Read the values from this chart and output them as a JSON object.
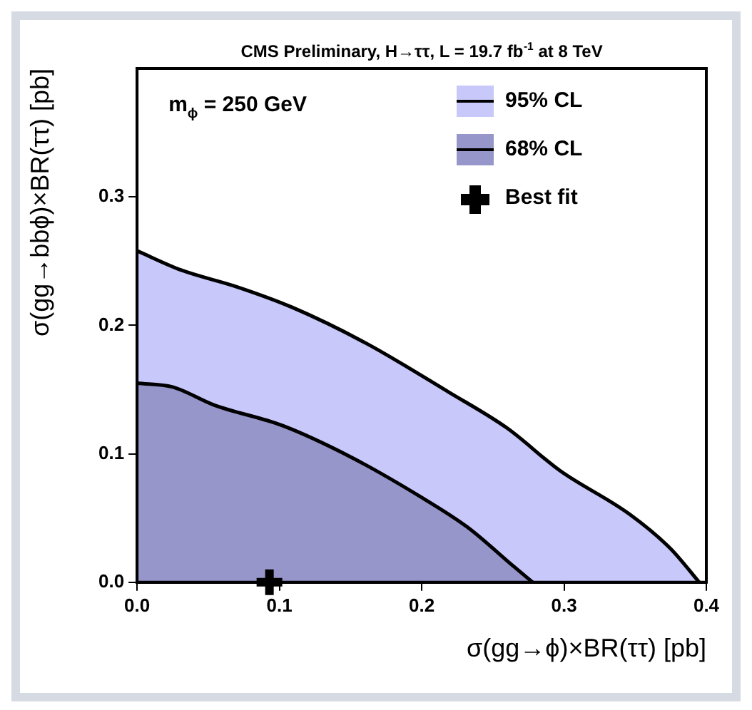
{
  "chart_data": {
    "type": "area",
    "title": "CMS Preliminary, H→ττ, L = 19.7 fb$^{-1}$ at 8 TeV",
    "xlabel": "σ(gg→ϕ)×BR(ττ) [pb]",
    "ylabel": "σ(gg→bbϕ)×BR(ττ) [pb]",
    "annotations": [
      "m$_{ϕ}$ = 250 GeV"
    ],
    "series": [
      {
        "name": "95% CL",
        "type": "area",
        "color": "#c8c8fa",
        "x": [
          0,
          0.031,
          0.07,
          0.109,
          0.161,
          0.219,
          0.26,
          0.297,
          0.346,
          0.375,
          0.395
        ],
        "values": [
          0.258,
          0.243,
          0.23,
          0.214,
          0.186,
          0.148,
          0.12,
          0.087,
          0.053,
          0.026,
          0
        ]
      },
      {
        "name": "68% CL",
        "type": "area",
        "color": "#9696cb",
        "x": [
          0,
          0.025,
          0.054,
          0.102,
          0.151,
          0.2,
          0.232,
          0.265,
          0.278
        ],
        "values": [
          0.155,
          0.152,
          0.138,
          0.122,
          0.097,
          0.066,
          0.043,
          0.012,
          0
        ]
      },
      {
        "name": "Best fit",
        "type": "scatter",
        "color": "#000000",
        "marker": "cross",
        "x": [
          0.093
        ],
        "values": [
          0
        ]
      }
    ],
    "xlim": [
      0,
      0.4
    ],
    "ylim": [
      0,
      0.4
    ],
    "xticks": [
      {
        "value": 0,
        "label": "0.0"
      },
      {
        "value": 0.1,
        "label": "0.1"
      },
      {
        "value": 0.2,
        "label": "0.2"
      },
      {
        "value": 0.3,
        "label": "0.3"
      },
      {
        "value": 0.4,
        "label": "0.4"
      }
    ],
    "yticks": [
      {
        "value": 0,
        "label": "0.0"
      },
      {
        "value": 0.1,
        "label": "0.1"
      },
      {
        "value": 0.2,
        "label": "0.2"
      },
      {
        "value": 0.3,
        "label": "0.3"
      }
    ],
    "grid": false,
    "legend": "top right"
  }
}
